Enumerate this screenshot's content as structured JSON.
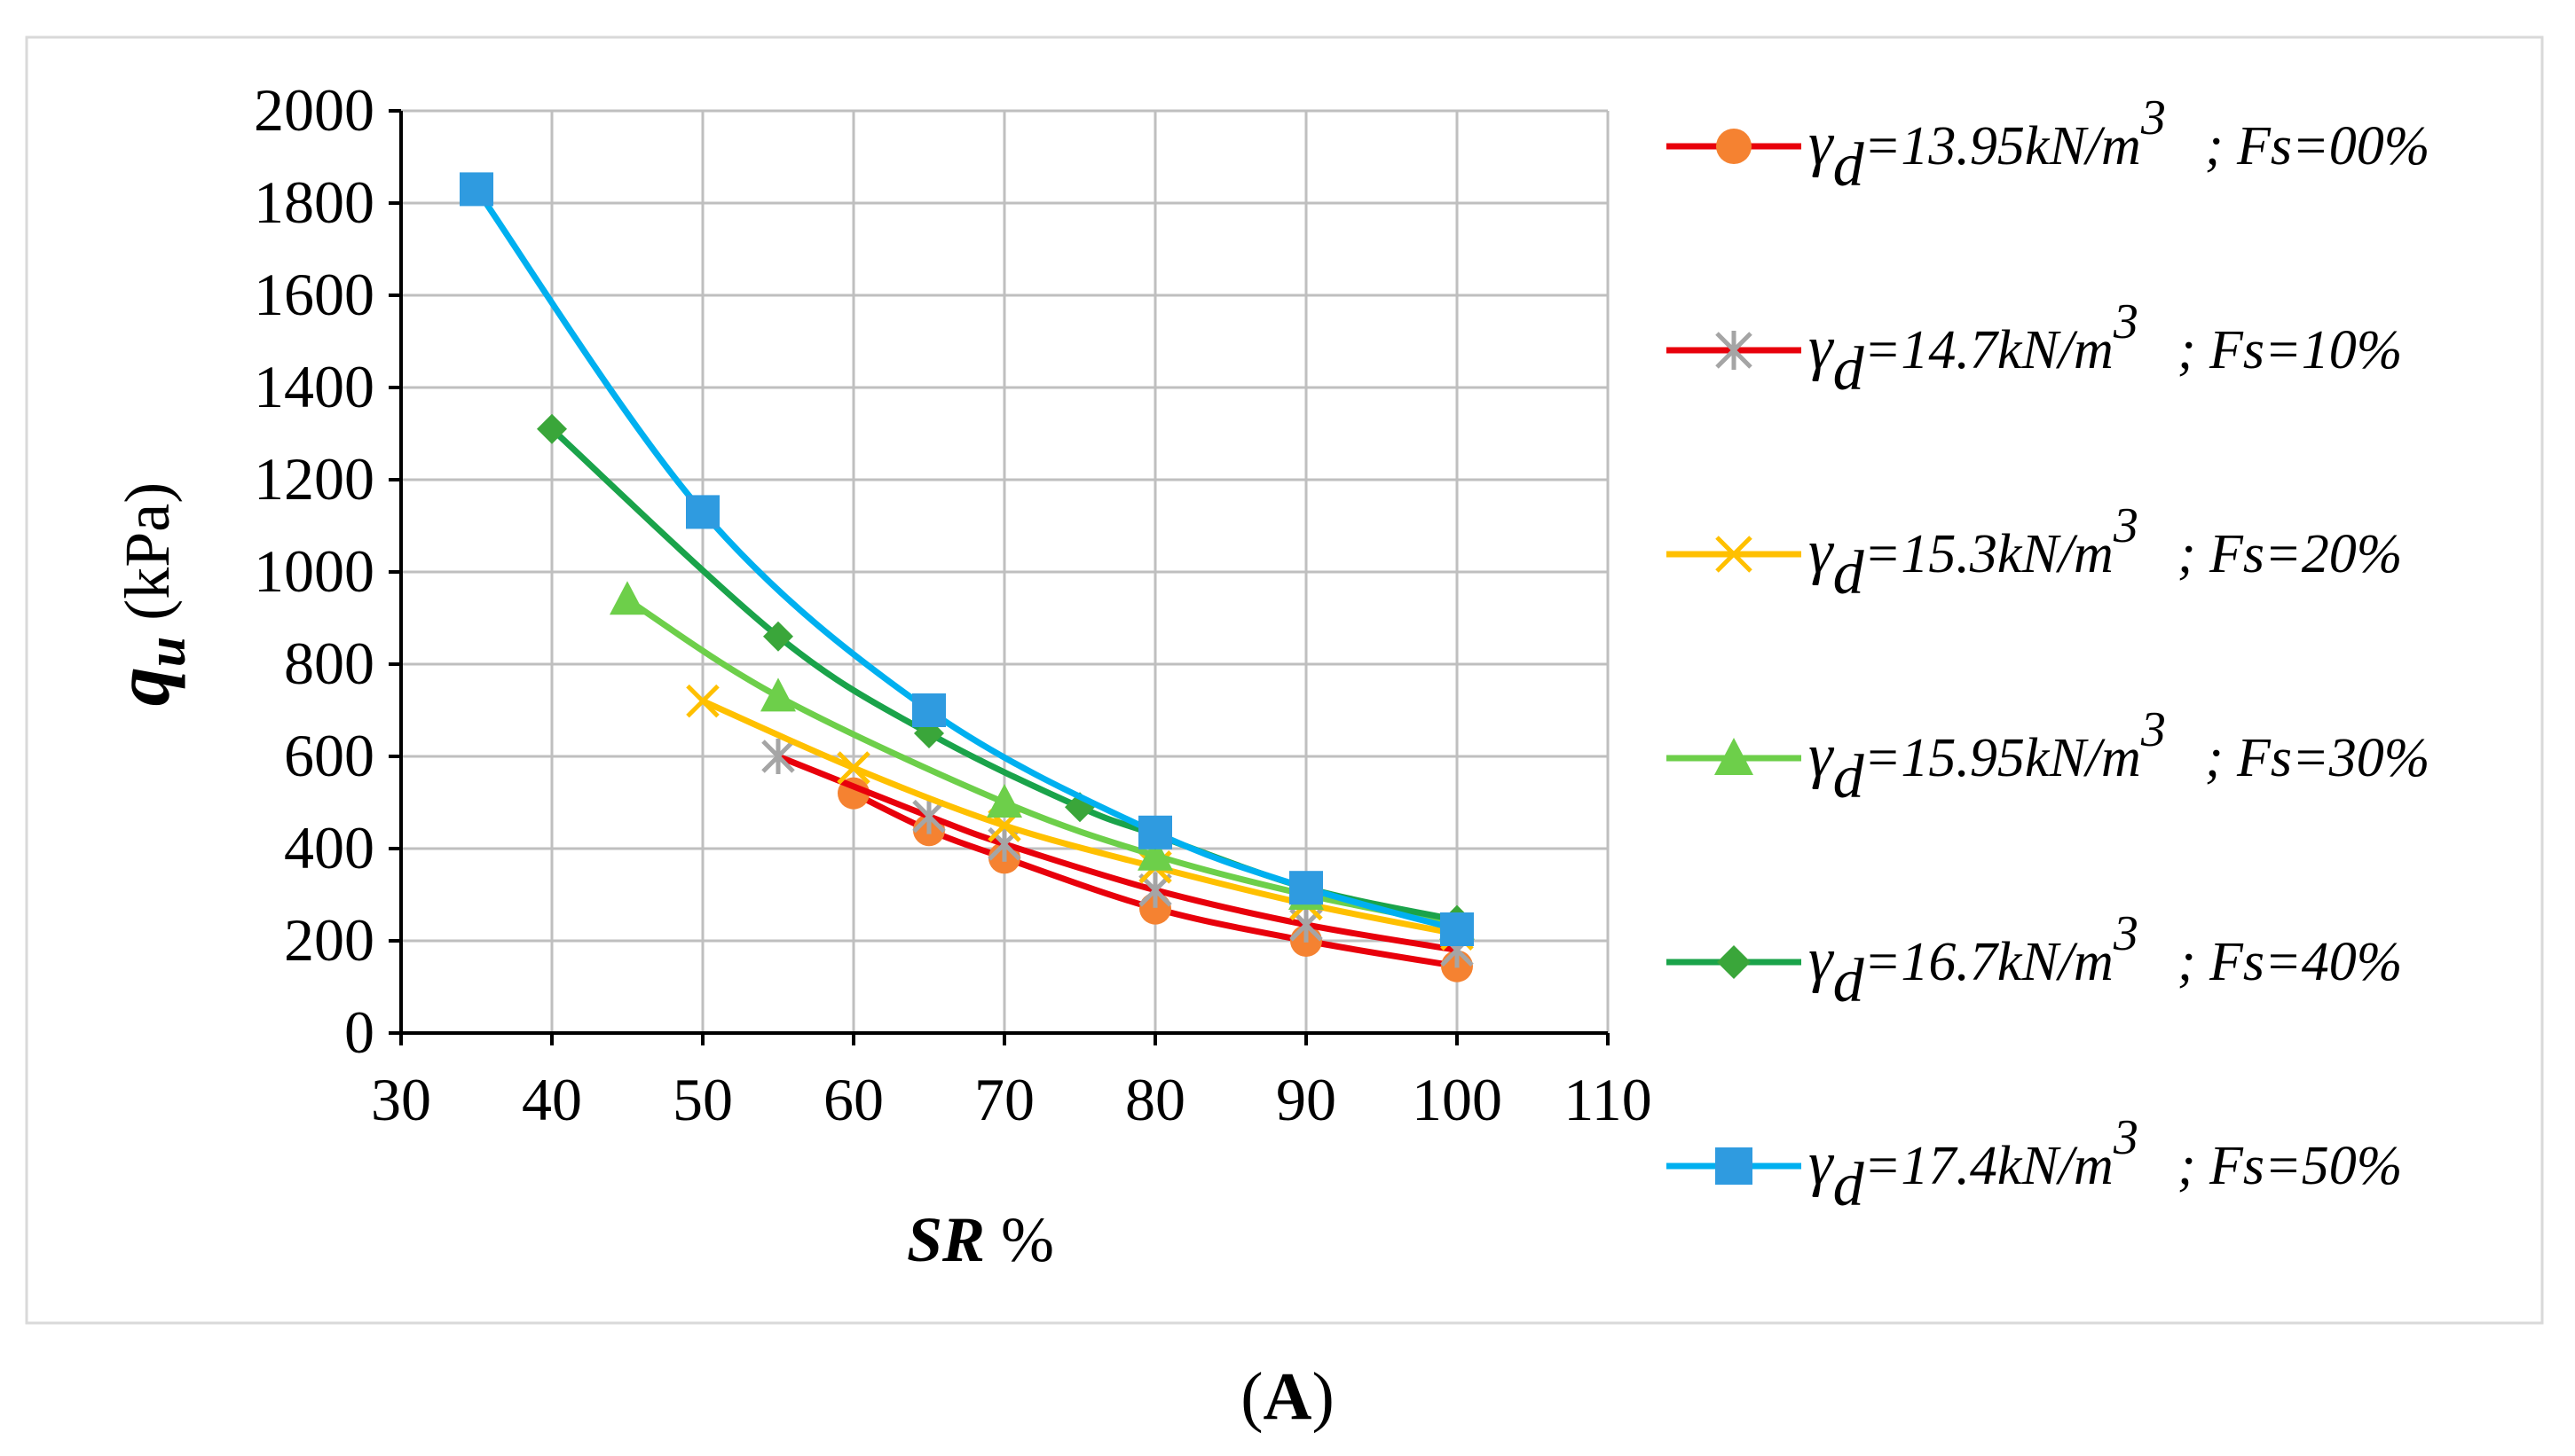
{
  "chart_data": {
    "type": "line",
    "title": "",
    "caption": {
      "open": "(",
      "letter": "A",
      "close": ")"
    },
    "xlabel": {
      "bold_italic": "SR",
      "rest": " %"
    },
    "ylabel": {
      "bold_italic": "q",
      "sub": "u",
      "rest": " (kPa)"
    },
    "xlim": [
      30,
      110
    ],
    "ylim": [
      0,
      2000
    ],
    "xticks": [
      "30",
      "40",
      "50",
      "60",
      "70",
      "80",
      "90",
      "100",
      "110"
    ],
    "yticks": [
      "0",
      "200",
      "400",
      "600",
      "800",
      "1000",
      "1200",
      "1400",
      "1600",
      "1800",
      "2000"
    ],
    "grid": true,
    "legend_position": "right",
    "series": [
      {
        "symbol": "γ",
        "sub": "d",
        "main": "=13.95kN/m",
        "sup": "3",
        "tail": "; Fs=00%",
        "line_color": "#e8000b",
        "marker_color": "#f58231",
        "marker": "circle",
        "x": [
          60,
          65,
          70,
          80,
          90,
          100
        ],
        "y": [
          520,
          440,
          380,
          270,
          200,
          145
        ]
      },
      {
        "symbol": "γ",
        "sub": "d",
        "main": "=14.7kN/m",
        "sup": "3",
        "tail": "; Fs=10%",
        "line_color": "#e8000b",
        "marker_color": "#a5a5a5",
        "marker": "asterisk",
        "x": [
          55,
          65,
          70,
          80,
          90,
          100
        ],
        "y": [
          600,
          470,
          410,
          310,
          235,
          180
        ]
      },
      {
        "symbol": "γ",
        "sub": "d",
        "main": "=15.3kN/m",
        "sup": "3",
        "tail": "; Fs=20%",
        "line_color": "#ffc000",
        "marker_color": "#ffc000",
        "marker": "x",
        "x": [
          50,
          60,
          70,
          80,
          90,
          100
        ],
        "y": [
          720,
          575,
          450,
          360,
          280,
          215
        ]
      },
      {
        "symbol": "γ",
        "sub": "d",
        "main": "=15.95kN/m",
        "sup": "3",
        "tail": "; Fs=30%",
        "line_color": "#6dcf4a",
        "marker_color": "#6dcf4a",
        "marker": "triangle",
        "x": [
          45,
          55,
          70,
          80,
          90,
          100
        ],
        "y": [
          940,
          730,
          500,
          385,
          300,
          235
        ]
      },
      {
        "symbol": "γ",
        "sub": "d",
        "main": "=16.7kN/m",
        "sup": "3",
        "tail": "; Fs=40%",
        "line_color": "#1aa34a",
        "marker_color": "#3aa63a",
        "marker": "diamond",
        "x": [
          40,
          55,
          65,
          75,
          80,
          90,
          100
        ],
        "y": [
          1310,
          860,
          650,
          490,
          430,
          315,
          245
        ]
      },
      {
        "symbol": "γ",
        "sub": "d",
        "main": "=17.4kN/m",
        "sup": "3",
        "tail": "; Fs=50%",
        "line_color": "#00b0f0",
        "marker_color": "#2f9be0",
        "marker": "square",
        "x": [
          35,
          50,
          65,
          80,
          90,
          100
        ],
        "y": [
          1830,
          1130,
          700,
          435,
          315,
          225
        ]
      }
    ]
  }
}
